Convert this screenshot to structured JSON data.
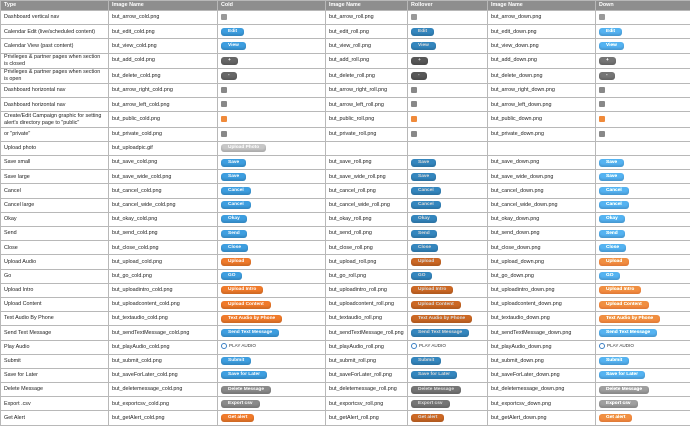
{
  "table": {
    "headers": [
      "Type",
      "Image Name",
      "Cold",
      "Image Name",
      "Rollover",
      "Image Name",
      "Down"
    ],
    "rows": [
      {
        "type": "Dashboard vertical nav",
        "cold_image": "but_arrow_cold.png",
        "cold_button": null,
        "roll_image": "but_arrow_roll.png",
        "roll_button": null,
        "down_image": "but_arrow_down.png",
        "down_button": null,
        "color": "#999999"
      },
      {
        "type": "Calendar Edit (live/scheduled content)",
        "cold_image": "but_edit_cold.png",
        "cold_button": "Edit",
        "roll_image": "but_edit_roll.png",
        "roll_button": "Edit",
        "down_image": "but_edit_down.png",
        "down_button": "Edit",
        "color": "#3d9ee0"
      },
      {
        "type": "Calendar View (past content)",
        "cold_image": "but_view_cold.png",
        "cold_button": "View",
        "roll_image": "but_view_roll.png",
        "roll_button": "View",
        "down_image": "but_view_down.png",
        "down_button": "View",
        "color": "#3d9ee0"
      },
      {
        "type": "Privileges & partner pages when section is closed",
        "cold_image": "but_add_cold.png",
        "cold_button": "+",
        "roll_image": "but_add_roll.png",
        "roll_button": "+",
        "down_image": "but_add_down.png",
        "down_button": "+",
        "color": "#666666"
      },
      {
        "type": "Privileges & partner pages when section is open",
        "cold_image": "but_delete_cold.png",
        "cold_button": "-",
        "roll_image": "but_delete_roll.png",
        "roll_button": "-",
        "down_image": "but_delete_down.png",
        "down_button": "-",
        "color": "#666666"
      },
      {
        "type": "Dashboard horizontal nav",
        "cold_image": "but_arrow_right_cold.png",
        "cold_button": null,
        "roll_image": "but_arrow_right_roll.png",
        "roll_button": null,
        "down_image": "but_arrow_right_down.png",
        "down_button": null,
        "color": "#888888"
      },
      {
        "type": "Dashboard horizontal nav",
        "cold_image": "but_arrow_left_cold.png",
        "cold_button": null,
        "roll_image": "but_arrow_left_roll.png",
        "roll_button": null,
        "down_image": "but_arrow_left_down.png",
        "down_button": null,
        "color": "#888888"
      },
      {
        "type": "Create/Edit Campaign graphic for setting alert's directory page to \"public\"",
        "cold_image": "but_public_cold.png",
        "cold_button": null,
        "roll_image": "but_public_roll.png",
        "roll_button": null,
        "down_image": "but_public_down.png",
        "down_button": null,
        "color": "#f08a3a"
      },
      {
        "type": "or \"private\"",
        "cold_image": "but_private_cold.png",
        "cold_button": null,
        "roll_image": "but_private_roll.png",
        "roll_button": null,
        "down_image": "but_private_down.png",
        "down_button": null,
        "color": "#888888"
      },
      {
        "type": "Upload photo",
        "cold_image": "but_uploadpic.gif",
        "cold_button": "Upload Photo",
        "roll_image": null,
        "roll_button": null,
        "down_image": null,
        "down_button": null,
        "color": "#c8c8c8"
      },
      {
        "type": "Save small",
        "cold_image": "but_save_cold.png",
        "cold_button": "Save",
        "roll_image": "but_save_roll.png",
        "roll_button": "Save",
        "down_image": "but_save_down.png",
        "down_button": "Save",
        "color": "#3d9ee0"
      },
      {
        "type": "Save large",
        "cold_image": "but_save_wide_cold.png",
        "cold_button": "Save",
        "roll_image": "but_save_wide_roll.png",
        "roll_button": "Save",
        "down_image": "but_save_wide_down.png",
        "down_button": "Save",
        "color": "#3d9ee0"
      },
      {
        "type": "Cancel",
        "cold_image": "but_cancel_cold.png",
        "cold_button": "Cancel",
        "roll_image": "but_cancel_roll.png",
        "roll_button": "Cancel",
        "down_image": "but_cancel_down.png",
        "down_button": "Cancel",
        "color": "#3d9ee0"
      },
      {
        "type": "Cancel large",
        "cold_image": "but_cancel_wide_cold.png",
        "cold_button": "Cancel",
        "roll_image": "but_cancel_wide_roll.png",
        "roll_button": "Cancel",
        "down_image": "but_cancel_wide_down.png",
        "down_button": "Cancel",
        "color": "#3d9ee0"
      },
      {
        "type": "Okay",
        "cold_image": "but_okay_cold.png",
        "cold_button": "Okay",
        "roll_image": "but_okay_roll.png",
        "roll_button": "Okay",
        "down_image": "but_okay_down.png",
        "down_button": "Okay",
        "color": "#3d9ee0"
      },
      {
        "type": "Send",
        "cold_image": "but_send_cold.png",
        "cold_button": "Send",
        "roll_image": "but_send_roll.png",
        "roll_button": "Send",
        "down_image": "but_send_down.png",
        "down_button": "Send",
        "color": "#3d9ee0"
      },
      {
        "type": "Close",
        "cold_image": "but_close_cold.png",
        "cold_button": "Close",
        "roll_image": "but_close_roll.png",
        "roll_button": "Close",
        "down_image": "but_close_down.png",
        "down_button": "Close",
        "color": "#3d9ee0"
      },
      {
        "type": "Upload Audio",
        "cold_image": "but_upload_cold.png",
        "cold_button": "Upload",
        "roll_image": "but_upload_roll.png",
        "roll_button": "Upload",
        "down_image": "but_upload_down.png",
        "down_button": "Upload",
        "color": "#f07a2a"
      },
      {
        "type": "Go",
        "cold_image": "but_go_cold.png",
        "cold_button": "GO",
        "roll_image": "but_go_roll.png",
        "roll_button": "GO",
        "down_image": "but_go_down.png",
        "down_button": "GO",
        "color": "#3d9ee0"
      },
      {
        "type": "Upload Intro",
        "cold_image": "but_uploadintro_cold.png",
        "cold_button": "Upload Intro",
        "roll_image": "but_uploadintro_roll.png",
        "roll_button": "Upload Intro",
        "down_image": "but_uploadintro_down.png",
        "down_button": "Upload Intro",
        "color": "#f07a2a"
      },
      {
        "type": "Upload Content",
        "cold_image": "but_uploadcontent_cold.png",
        "cold_button": "Upload Content",
        "roll_image": "but_uploadcontent_roll.png",
        "roll_button": "Upload Content",
        "down_image": "but_uploadcontent_down.png",
        "down_button": "Upload Content",
        "color": "#f07a2a"
      },
      {
        "type": "Text Audio By Phone",
        "cold_image": "but_textaudio_cold.png",
        "cold_button": "Text Audio by Phone",
        "roll_image": "but_textaudio_roll.png",
        "roll_button": "Text Audio by Phone",
        "down_image": "but_textaudio_down.png",
        "down_button": "Text Audio by Phone",
        "color": "#f07a2a"
      },
      {
        "type": "Send Text Message",
        "cold_image": "but_sendTextMessage_cold.png",
        "cold_button": "Send Text Message",
        "roll_image": "but_sendTextMessage_roll.png",
        "roll_button": "Send Text Message",
        "down_image": "but_sendTextMessage_down.png",
        "down_button": "Send Text Message",
        "color": "#3d9ee0"
      },
      {
        "type": "Play Audio",
        "cold_image": "but_playAudio_cold.png",
        "cold_button": "PLAY AUDIO",
        "roll_image": "but_playAudio_roll.png",
        "roll_button": "PLAY AUDIO",
        "down_image": "but_playAudio_down.png",
        "down_button": "PLAY AUDIO",
        "color": null
      },
      {
        "type": "Submit",
        "cold_image": "but_submit_cold.png",
        "cold_button": "Submit",
        "roll_image": "but_submit_roll.png",
        "roll_button": "Submit",
        "down_image": "but_submit_down.png",
        "down_button": "Submit",
        "color": "#3d9ee0"
      },
      {
        "type": "Save for Later",
        "cold_image": "but_saveForLater_cold.png",
        "cold_button": "Save for Later",
        "roll_image": "but_saveForLater_roll.png",
        "roll_button": "Save for Later",
        "down_image": "but_saveForLater_down.png",
        "down_button": "Save for Later",
        "color": "#3d9ee0"
      },
      {
        "type": "Delete Message",
        "cold_image": "but_deletemessage_cold.png",
        "cold_button": "Delete Message",
        "roll_image": "but_deletemessage_roll.png",
        "roll_button": "Delete Message",
        "down_image": "but_deletemessage_down.png",
        "down_button": "Delete Message",
        "color": "#8a8a8a"
      },
      {
        "type": "Export .csv",
        "cold_image": "but_exportcsv_cold.png",
        "cold_button": "Export csv",
        "roll_image": "but_exportcsv_roll.png",
        "roll_button": "Export csv",
        "down_image": "but_exportcsv_down.png",
        "down_button": "Export csv",
        "color": "#8a8a8a"
      },
      {
        "type": "Get Alert",
        "cold_image": "but_getAlert_cold.png",
        "cold_button": "Get alert",
        "roll_image": "but_getAlert_roll.png",
        "roll_button": "Get alert",
        "down_image": "but_getAlert_down.png",
        "down_button": "Get alert",
        "color": "#f07a2a"
      }
    ]
  }
}
